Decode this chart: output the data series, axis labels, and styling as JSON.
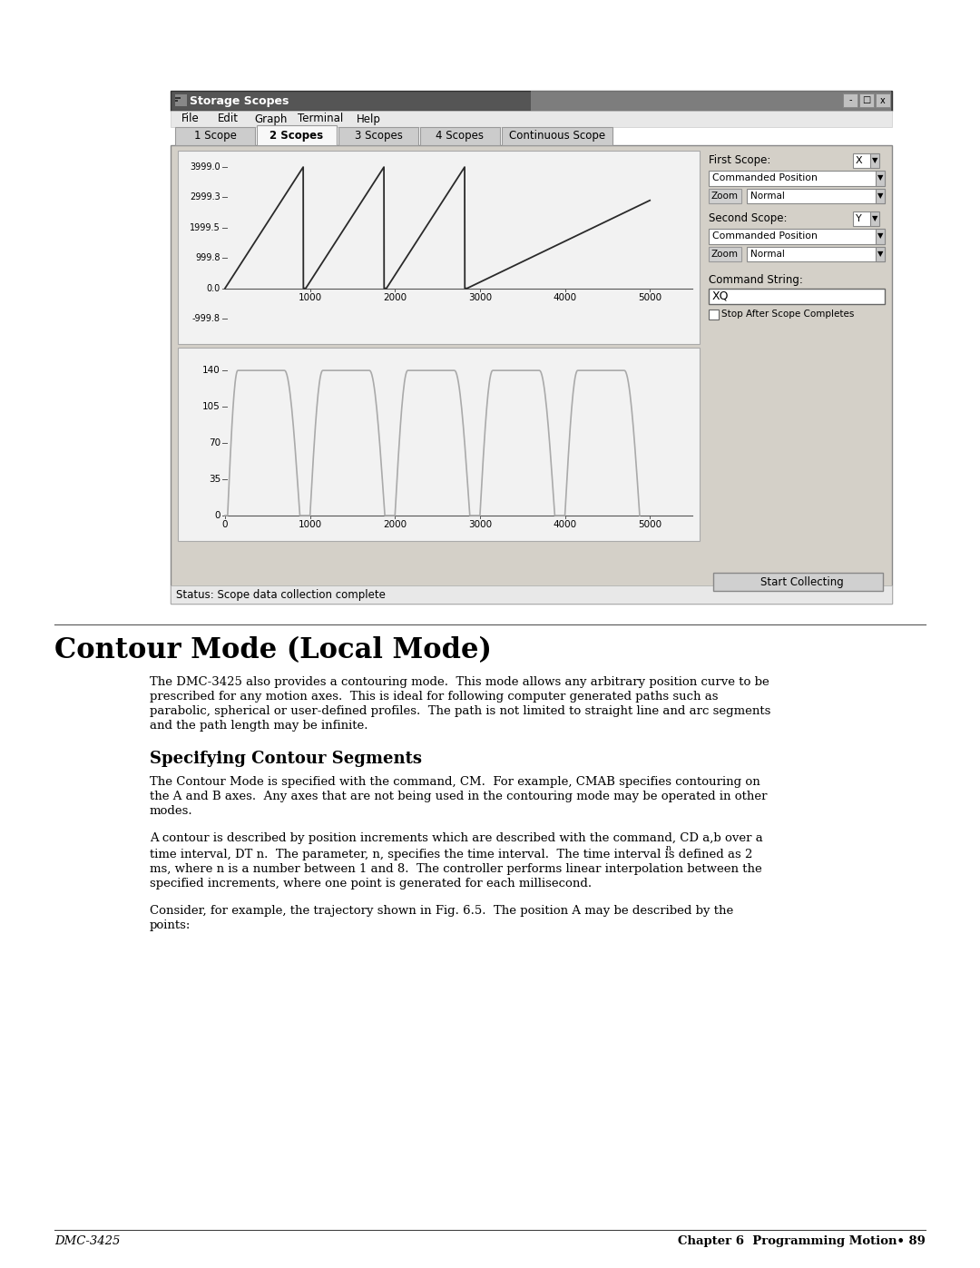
{
  "page_bg": "#ffffff",
  "window_title": "Storage Scopes",
  "tab_labels": [
    "1 Scope",
    "2 Scopes",
    "3 Scopes",
    "4 Scopes",
    "Continuous Scope"
  ],
  "active_tab": 1,
  "menu_items": [
    "File",
    "Edit",
    "Graph",
    "Terminal",
    "Help"
  ],
  "scope1_ytick_labels": [
    "3999.0",
    "2999.3",
    "1999.5",
    "999.8",
    "0.0",
    "-999.8"
  ],
  "scope1_ytick_vals": [
    3999.0,
    2999.3,
    1999.5,
    999.8,
    0.0,
    -999.8
  ],
  "scope1_xtick_vals": [
    1000,
    2000,
    3000,
    4000,
    5000
  ],
  "scope2_ytick_vals": [
    0,
    35,
    70,
    105,
    140
  ],
  "scope2_xtick_vals": [
    0,
    1000,
    2000,
    3000,
    4000,
    5000
  ],
  "status_text": "Status: Scope data collection complete",
  "section_title": "Contour Mode (Local Mode)",
  "para1_lines": [
    "The DMC-3425 also provides a contouring mode.  This mode allows any arbitrary position curve to be",
    "prescribed for any motion axes.  This is ideal for following computer generated paths such as",
    "parabolic, spherical or user-defined profiles.  The path is not limited to straight line and arc segments",
    "and the path length may be infinite."
  ],
  "subsection_title": "Specifying Contour Segments",
  "para2_lines": [
    "The Contour Mode is specified with the command, CM.  For example, CMAB specifies contouring on",
    "the A and B axes.  Any axes that are not being used in the contouring mode may be operated in other",
    "modes."
  ],
  "para3": "A contour is described by position increments which are described with the command, CD a,b over a",
  "para4_pre": "time interval, DT n.  The parameter, n, specifies the time interval.  The time interval is defined as 2",
  "para4_super": "n",
  "para4_line2": "ms, where n is a number between 1 and 8.  The controller performs linear interpolation between the",
  "para4_line3": "specified increments, where one point is generated for each millisecond.",
  "para5_lines": [
    "Consider, for example, the trajectory shown in Fig. 6.5.  The position A may be described by the",
    "points:"
  ],
  "footer_left": "DMC-3425",
  "footer_right": "Chapter 6  Programming Motion• 89"
}
